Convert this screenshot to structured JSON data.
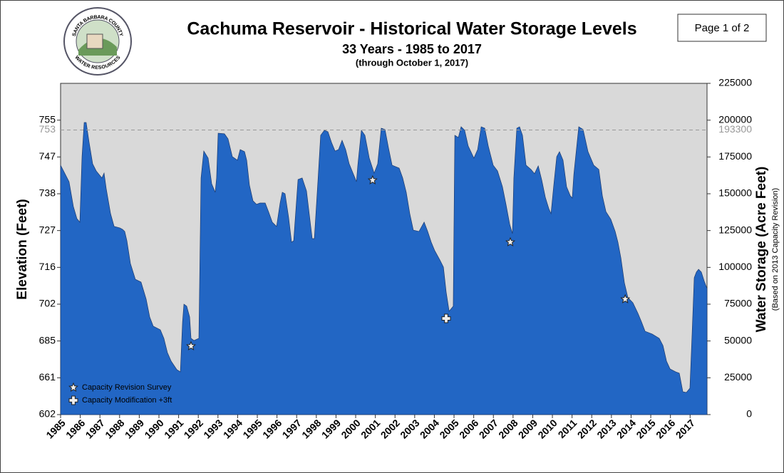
{
  "page": {
    "label": "Page 1 of 2"
  },
  "logo": {
    "top": "SANTA BARBARA COUNTY",
    "bottom": "WATER RESOURCES"
  },
  "chart_data": {
    "type": "area",
    "title": "Cachuma Reservoir - Historical Water Storage Levels",
    "subtitle": "33 Years - 1985 to 2017",
    "note": "(through October 1, 2017)",
    "y_label": "Elevation (Feet)",
    "y2_label": "Water Storage (Acre Feet)",
    "y2_sublabel": "(Based on 2013 Capacity Revision)",
    "color": "#2266c4",
    "background": "#d9d9d9",
    "xlim": [
      1985,
      2017.86
    ],
    "xticks": [
      1985,
      1986,
      1987,
      1988,
      1989,
      1990,
      1991,
      1992,
      1993,
      1994,
      1995,
      1996,
      1997,
      1998,
      1999,
      2000,
      2001,
      2002,
      2003,
      2004,
      2005,
      2006,
      2007,
      2008,
      2009,
      2010,
      2011,
      2012,
      2013,
      2014,
      2015,
      2016,
      2017
    ],
    "ylim": [
      0,
      225000
    ],
    "yticks": [
      0,
      25000,
      50000,
      75000,
      100000,
      125000,
      150000,
      175000,
      200000,
      225000
    ],
    "elevation_ticks": [
      {
        "value": 0,
        "label": "602"
      },
      {
        "value": 25000,
        "label": "661"
      },
      {
        "value": 50000,
        "label": "685"
      },
      {
        "value": 75000,
        "label": "702"
      },
      {
        "value": 100000,
        "label": "716"
      },
      {
        "value": 125000,
        "label": "727"
      },
      {
        "value": 150000,
        "label": "738"
      },
      {
        "value": 175000,
        "label": "747"
      },
      {
        "value": 200000,
        "label": "755"
      }
    ],
    "reference": {
      "value": 193300,
      "label": "753"
    },
    "x": [
      1985.0,
      1985.43,
      1985.65,
      1985.83,
      1985.98,
      1986.09,
      1986.2,
      1986.3,
      1986.45,
      1986.63,
      1986.81,
      1987.1,
      1987.21,
      1987.32,
      1987.54,
      1987.72,
      1988.01,
      1988.15,
      1988.26,
      1988.37,
      1988.55,
      1988.8,
      1989.09,
      1989.35,
      1989.53,
      1989.71,
      1990.07,
      1990.25,
      1990.43,
      1990.62,
      1990.91,
      1991.09,
      1991.2,
      1991.27,
      1991.41,
      1991.56,
      1991.63,
      1991.78,
      1992.03,
      1992.14,
      1992.28,
      1992.5,
      1992.68,
      1992.86,
      1992.93,
      1993.01,
      1993.33,
      1993.51,
      1993.73,
      1993.99,
      1994.13,
      1994.35,
      1994.46,
      1994.6,
      1994.78,
      1994.96,
      1995.14,
      1995.4,
      1995.58,
      1995.76,
      1995.98,
      1996.16,
      1996.27,
      1996.41,
      1996.59,
      1996.74,
      1996.85,
      1997.07,
      1997.28,
      1997.5,
      1997.79,
      1997.9,
      1998.08,
      1998.22,
      1998.41,
      1998.59,
      1998.77,
      1998.95,
      1999.13,
      1999.31,
      1999.49,
      1999.67,
      2000.04,
      2000.11,
      2000.29,
      2000.47,
      2000.69,
      2000.94,
      2001.12,
      2001.3,
      2001.49,
      2001.67,
      2001.85,
      2002.21,
      2002.39,
      2002.57,
      2002.75,
      2002.93,
      2003.22,
      2003.48,
      2003.66,
      2003.84,
      2004.02,
      2004.28,
      2004.46,
      2004.6,
      2004.75,
      2004.96,
      2005.04,
      2005.22,
      2005.36,
      2005.54,
      2005.72,
      2006.01,
      2006.2,
      2006.38,
      2006.56,
      2006.74,
      2006.99,
      2007.21,
      2007.46,
      2007.64,
      2007.83,
      2007.97,
      2008.04,
      2008.19,
      2008.33,
      2008.48,
      2008.66,
      2008.91,
      2009.09,
      2009.28,
      2009.46,
      2009.64,
      2009.82,
      2009.93,
      2010.07,
      2010.22,
      2010.36,
      2010.54,
      2010.72,
      2010.91,
      2011.01,
      2011.09,
      2011.34,
      2011.56,
      2011.81,
      2012.1,
      2012.36,
      2012.54,
      2012.72,
      2012.97,
      2013.19,
      2013.33,
      2013.48,
      2013.66,
      2013.84,
      2014.09,
      2014.35,
      2014.53,
      2014.71,
      2015.07,
      2015.43,
      2015.62,
      2015.8,
      2015.98,
      2016.27,
      2016.45,
      2016.63,
      2016.81,
      2016.99,
      2017.1,
      2017.21,
      2017.32,
      2017.43,
      2017.57,
      2017.72,
      2017.86
    ],
    "values": [
      169400,
      158200,
      141300,
      133100,
      130700,
      175200,
      198400,
      198400,
      184900,
      170300,
      165500,
      160700,
      164000,
      153400,
      136500,
      127800,
      126800,
      125800,
      124400,
      118100,
      102600,
      91900,
      90000,
      78400,
      66300,
      60000,
      57600,
      51800,
      42100,
      36300,
      30500,
      29000,
      62900,
      75000,
      73600,
      66300,
      51800,
      50300,
      51800,
      160700,
      179000,
      174200,
      156800,
      151000,
      160700,
      191100,
      190700,
      187300,
      175200,
      172800,
      180000,
      178600,
      172800,
      155800,
      145200,
      142800,
      143700,
      143700,
      137400,
      130700,
      127800,
      143700,
      151000,
      150000,
      134000,
      117100,
      118100,
      159700,
      160700,
      151900,
      119500,
      119500,
      158200,
      189700,
      193100,
      192100,
      184900,
      179000,
      180000,
      186300,
      180000,
      170300,
      158200,
      169400,
      193100,
      189700,
      174200,
      164000,
      170300,
      194500,
      193600,
      181000,
      169400,
      167400,
      160700,
      151000,
      136500,
      125300,
      124400,
      130700,
      124400,
      117100,
      111300,
      105000,
      100200,
      83200,
      70200,
      73600,
      189700,
      188200,
      195500,
      193100,
      182400,
      174200,
      180000,
      195500,
      194500,
      182400,
      169400,
      165500,
      154800,
      142800,
      129200,
      122900,
      160700,
      194500,
      195500,
      189700,
      169400,
      166500,
      163600,
      168900,
      159200,
      147600,
      139800,
      136500,
      155800,
      175200,
      178600,
      172800,
      154800,
      148600,
      147100,
      163100,
      195500,
      193600,
      178600,
      169400,
      166500,
      148600,
      137900,
      132600,
      124400,
      117100,
      106500,
      89500,
      79400,
      76000,
      68700,
      62900,
      56600,
      54700,
      51800,
      46900,
      36300,
      31000,
      29000,
      28100,
      15500,
      15000,
      17900,
      54200,
      92900,
      96800,
      98700,
      96800,
      90500,
      85700
    ],
    "markers": [
      {
        "name": "Capacity Revision Survey",
        "symbol": "star",
        "x": [
          1991.63,
          2000.86,
          2007.86,
          2013.7
        ],
        "values": [
          46500,
          159200,
          117100,
          78400
        ]
      },
      {
        "name": "Capacity Modification +3ft",
        "symbol": "plus",
        "x": [
          2004.6
        ],
        "values": [
          65300
        ]
      }
    ]
  }
}
